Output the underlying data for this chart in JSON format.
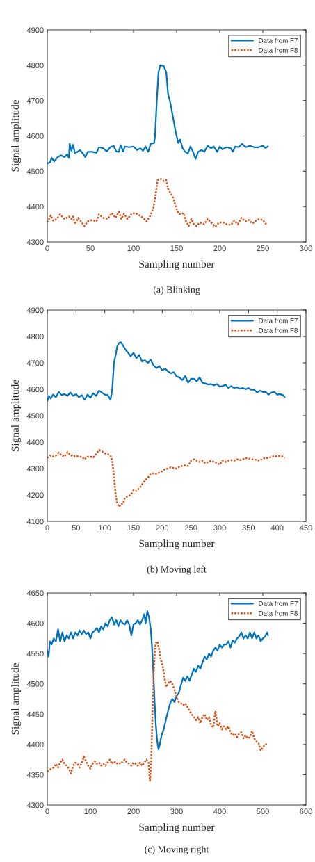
{
  "chart_data": [
    {
      "type": "line",
      "title": "(a) Blinking",
      "xlabel": "Sampling number",
      "ylabel": "Signal amplitude",
      "xlim": [
        0,
        300
      ],
      "xticks": [
        0,
        50,
        100,
        150,
        200,
        250,
        300
      ],
      "ylim": [
        4300,
        4900
      ],
      "yticks": [
        4300,
        4400,
        4500,
        4600,
        4700,
        4800,
        4900
      ],
      "grid": false,
      "legend": "top right",
      "series": [
        {
          "name": "Data from F7",
          "color": "#0072bd",
          "line_style": "solid",
          "x": [
            0,
            3,
            5,
            8,
            12,
            16,
            20,
            23,
            25,
            26,
            28,
            30,
            32,
            35,
            38,
            42,
            44,
            47,
            52,
            57,
            60,
            65,
            69,
            73,
            77,
            80,
            83,
            85,
            88,
            90,
            95,
            100,
            104,
            108,
            111,
            114,
            117,
            120,
            124,
            125,
            127,
            129,
            131,
            135,
            138,
            140,
            143,
            146,
            149,
            152,
            154,
            157,
            160,
            163,
            166,
            169,
            172,
            175,
            179,
            182,
            186,
            190,
            193,
            197,
            200,
            203,
            208,
            213,
            215,
            218,
            222,
            226,
            230,
            235,
            240,
            245,
            250,
            253,
            256
          ],
          "values": [
            4522,
            4525,
            4538,
            4528,
            4540,
            4545,
            4540,
            4548,
            4538,
            4578,
            4558,
            4575,
            4552,
            4555,
            4560,
            4548,
            4540,
            4555,
            4555,
            4552,
            4568,
            4565,
            4556,
            4568,
            4572,
            4556,
            4555,
            4574,
            4556,
            4570,
            4568,
            4570,
            4560,
            4565,
            4558,
            4570,
            4555,
            4578,
            4580,
            4600,
            4700,
            4780,
            4800,
            4798,
            4780,
            4720,
            4690,
            4650,
            4610,
            4580,
            4590,
            4565,
            4555,
            4550,
            4570,
            4555,
            4535,
            4555,
            4560,
            4555,
            4572,
            4565,
            4570,
            4555,
            4570,
            4562,
            4568,
            4565,
            4555,
            4570,
            4568,
            4578,
            4568,
            4572,
            4568,
            4568,
            4572,
            4566,
            4570
          ]
        },
        {
          "name": "Data from F8",
          "color": "#d95319",
          "line_style": "dotted",
          "x": [
            0,
            4,
            7,
            11,
            15,
            20,
            25,
            28,
            30,
            32,
            36,
            40,
            43,
            47,
            52,
            57,
            60,
            65,
            70,
            75,
            79,
            83,
            86,
            89,
            93,
            98,
            102,
            107,
            111,
            115,
            119,
            123,
            126,
            128,
            132,
            135,
            138,
            140,
            143,
            146,
            149,
            152,
            155,
            158,
            161,
            164,
            167,
            170,
            173,
            177,
            182,
            186,
            190,
            195,
            199,
            204,
            208,
            213,
            217,
            221,
            225,
            230,
            234,
            238,
            242,
            246,
            250,
            253,
            256
          ],
          "values": [
            4355,
            4375,
            4360,
            4365,
            4378,
            4365,
            4372,
            4365,
            4372,
            4350,
            4368,
            4355,
            4345,
            4358,
            4362,
            4358,
            4378,
            4368,
            4365,
            4382,
            4368,
            4385,
            4365,
            4380,
            4365,
            4380,
            4382,
            4375,
            4368,
            4358,
            4372,
            4395,
            4440,
            4475,
            4478,
            4472,
            4475,
            4450,
            4438,
            4425,
            4400,
            4380,
            4378,
            4382,
            4358,
            4345,
            4365,
            4350,
            4345,
            4355,
            4350,
            4365,
            4355,
            4343,
            4355,
            4355,
            4350,
            4348,
            4360,
            4350,
            4368,
            4358,
            4362,
            4352,
            4360,
            4365,
            4362,
            4352,
            4350
          ]
        }
      ]
    },
    {
      "type": "line",
      "title": "(b) Moving left",
      "xlabel": "Sampling number",
      "ylabel": "Signal amplitude",
      "xlim": [
        0,
        450
      ],
      "xticks": [
        0,
        50,
        100,
        150,
        200,
        250,
        300,
        350,
        400,
        450
      ],
      "ylim": [
        4100,
        4900
      ],
      "yticks": [
        4100,
        4200,
        4300,
        4400,
        4500,
        4600,
        4700,
        4800,
        4900
      ],
      "grid": false,
      "legend": "top right",
      "series": [
        {
          "name": "Data from F7",
          "color": "#0072bd",
          "line_style": "solid",
          "x": [
            0,
            3,
            6,
            10,
            15,
            20,
            25,
            30,
            35,
            40,
            45,
            50,
            55,
            60,
            65,
            70,
            75,
            80,
            85,
            90,
            95,
            100,
            105,
            110,
            113,
            116,
            119,
            122,
            125,
            128,
            132,
            136,
            140,
            145,
            150,
            155,
            160,
            165,
            170,
            175,
            180,
            185,
            190,
            195,
            200,
            205,
            210,
            215,
            220,
            225,
            230,
            235,
            240,
            245,
            250,
            255,
            260,
            265,
            270,
            275,
            280,
            285,
            290,
            295,
            300,
            305,
            310,
            315,
            320,
            325,
            330,
            335,
            340,
            345,
            350,
            355,
            360,
            365,
            370,
            375,
            380,
            385,
            390,
            395,
            400,
            405,
            410,
            413
          ],
          "values": [
            4555,
            4575,
            4565,
            4580,
            4570,
            4590,
            4578,
            4582,
            4575,
            4588,
            4575,
            4582,
            4570,
            4578,
            4560,
            4580,
            4568,
            4585,
            4575,
            4595,
            4588,
            4580,
            4578,
            4560,
            4600,
            4700,
            4730,
            4765,
            4775,
            4778,
            4765,
            4750,
            4740,
            4725,
            4738,
            4718,
            4730,
            4705,
            4710,
            4700,
            4712,
            4690,
            4680,
            4688,
            4672,
            4678,
            4668,
            4660,
            4665,
            4648,
            4645,
            4635,
            4650,
            4625,
            4640,
            4640,
            4630,
            4645,
            4625,
            4622,
            4618,
            4620,
            4615,
            4620,
            4610,
            4612,
            4618,
            4605,
            4612,
            4605,
            4608,
            4602,
            4605,
            4600,
            4605,
            4598,
            4598,
            4588,
            4595,
            4590,
            4590,
            4580,
            4588,
            4590,
            4580,
            4582,
            4578,
            4570
          ]
        },
        {
          "name": "Data from F8",
          "color": "#d95319",
          "line_style": "dotted",
          "x": [
            0,
            5,
            10,
            15,
            20,
            25,
            30,
            35,
            40,
            45,
            50,
            55,
            60,
            65,
            70,
            75,
            80,
            85,
            90,
            95,
            100,
            105,
            110,
            113,
            116,
            119,
            122,
            125,
            128,
            132,
            135,
            140,
            145,
            150,
            155,
            160,
            165,
            170,
            175,
            180,
            185,
            190,
            195,
            200,
            205,
            210,
            215,
            220,
            225,
            230,
            235,
            240,
            245,
            250,
            255,
            260,
            265,
            270,
            275,
            280,
            285,
            290,
            295,
            300,
            305,
            310,
            315,
            320,
            325,
            330,
            335,
            340,
            345,
            350,
            355,
            360,
            365,
            370,
            375,
            380,
            385,
            390,
            395,
            400,
            405,
            410,
            413
          ],
          "values": [
            4340,
            4350,
            4345,
            4350,
            4360,
            4350,
            4345,
            4362,
            4352,
            4345,
            4348,
            4345,
            4345,
            4335,
            4345,
            4345,
            4342,
            4355,
            4370,
            4365,
            4358,
            4355,
            4350,
            4330,
            4270,
            4200,
            4165,
            4155,
            4165,
            4168,
            4190,
            4195,
            4200,
            4218,
            4215,
            4225,
            4240,
            4255,
            4265,
            4280,
            4282,
            4280,
            4285,
            4290,
            4298,
            4300,
            4305,
            4302,
            4300,
            4308,
            4310,
            4312,
            4310,
            4330,
            4335,
            4330,
            4325,
            4330,
            4320,
            4325,
            4330,
            4325,
            4322,
            4315,
            4330,
            4325,
            4330,
            4332,
            4330,
            4335,
            4332,
            4335,
            4340,
            4338,
            4335,
            4335,
            4332,
            4330,
            4338,
            4340,
            4340,
            4345,
            4348,
            4345,
            4348,
            4345,
            4340
          ]
        }
      ]
    },
    {
      "type": "line",
      "title": "(c) Moving right",
      "xlabel": "Sampling number",
      "ylabel": "Signal amplitude",
      "xlim": [
        0,
        600
      ],
      "xticks": [
        0,
        100,
        200,
        300,
        400,
        500,
        600
      ],
      "ylim": [
        4300,
        4650
      ],
      "yticks": [
        4300,
        4350,
        4400,
        4450,
        4500,
        4550,
        4600,
        4650
      ],
      "grid": false,
      "legend": "top right",
      "series": [
        {
          "name": "Data from F7",
          "color": "#0072bd",
          "line_style": "solid",
          "x": [
            0,
            3,
            6,
            10,
            15,
            20,
            25,
            30,
            35,
            40,
            45,
            50,
            55,
            60,
            65,
            70,
            75,
            80,
            85,
            90,
            95,
            100,
            105,
            110,
            115,
            120,
            125,
            130,
            135,
            140,
            145,
            150,
            155,
            160,
            165,
            170,
            175,
            180,
            185,
            190,
            195,
            200,
            205,
            210,
            215,
            220,
            225,
            228,
            232,
            236,
            240,
            243,
            246,
            249,
            252,
            255,
            258,
            261,
            265,
            270,
            275,
            280,
            285,
            290,
            295,
            300,
            305,
            310,
            315,
            320,
            325,
            330,
            335,
            340,
            345,
            350,
            355,
            360,
            365,
            370,
            375,
            380,
            385,
            390,
            395,
            400,
            405,
            410,
            415,
            420,
            425,
            430,
            435,
            440,
            445,
            450,
            455,
            460,
            465,
            470,
            475,
            480,
            485,
            490,
            495,
            500,
            505,
            510,
            512
          ],
          "values": [
            4555,
            4545,
            4570,
            4565,
            4575,
            4570,
            4590,
            4570,
            4585,
            4570,
            4580,
            4575,
            4585,
            4575,
            4585,
            4580,
            4588,
            4582,
            4588,
            4582,
            4585,
            4575,
            4585,
            4588,
            4592,
            4585,
            4595,
            4590,
            4600,
            4595,
            4605,
            4610,
            4598,
            4605,
            4595,
            4605,
            4600,
            4598,
            4605,
            4598,
            4580,
            4598,
            4600,
            4605,
            4598,
            4605,
            4615,
            4600,
            4620,
            4610,
            4590,
            4560,
            4520,
            4470,
            4430,
            4405,
            4392,
            4400,
            4415,
            4425,
            4440,
            4455,
            4468,
            4475,
            4470,
            4480,
            4485,
            4498,
            4510,
            4505,
            4512,
            4505,
            4515,
            4525,
            4520,
            4530,
            4525,
            4535,
            4545,
            4540,
            4550,
            4545,
            4555,
            4560,
            4555,
            4565,
            4560,
            4565,
            4565,
            4570,
            4560,
            4572,
            4568,
            4575,
            4578,
            4585,
            4575,
            4580,
            4575,
            4585,
            4575,
            4585,
            4575,
            4580,
            4570,
            4575,
            4578,
            4585,
            4580
          ]
        },
        {
          "name": "Data from F8",
          "color": "#d95319",
          "line_style": "dotted",
          "x": [
            0,
            5,
            10,
            15,
            20,
            25,
            30,
            35,
            40,
            45,
            50,
            55,
            60,
            65,
            70,
            75,
            80,
            85,
            90,
            95,
            100,
            105,
            110,
            115,
            120,
            125,
            130,
            135,
            140,
            145,
            150,
            155,
            160,
            165,
            170,
            175,
            180,
            185,
            190,
            195,
            200,
            205,
            210,
            215,
            220,
            225,
            230,
            235,
            238,
            241,
            244,
            247,
            250,
            253,
            256,
            260,
            263,
            266,
            270,
            273,
            276,
            280,
            285,
            290,
            295,
            300,
            305,
            310,
            315,
            320,
            325,
            330,
            335,
            340,
            345,
            350,
            355,
            360,
            365,
            370,
            375,
            380,
            385,
            390,
            395,
            400,
            405,
            410,
            415,
            420,
            425,
            430,
            435,
            440,
            445,
            450,
            455,
            460,
            465,
            470,
            475,
            480,
            485,
            490,
            495,
            500,
            505,
            512
          ],
          "values": [
            4355,
            4358,
            4360,
            4362,
            4368,
            4362,
            4370,
            4375,
            4368,
            4365,
            4360,
            4352,
            4365,
            4370,
            4368,
            4362,
            4370,
            4380,
            4372,
            4365,
            4360,
            4368,
            4372,
            4368,
            4370,
            4365,
            4368,
            4365,
            4370,
            4375,
            4368,
            4372,
            4368,
            4370,
            4368,
            4372,
            4375,
            4370,
            4368,
            4365,
            4370,
            4368,
            4365,
            4370,
            4365,
            4370,
            4375,
            4370,
            4340,
            4370,
            4450,
            4520,
            4560,
            4570,
            4568,
            4555,
            4540,
            4535,
            4520,
            4505,
            4495,
            4500,
            4505,
            4500,
            4490,
            4478,
            4470,
            4468,
            4465,
            4468,
            4462,
            4455,
            4450,
            4445,
            4440,
            4445,
            4435,
            4445,
            4450,
            4440,
            4445,
            4432,
            4428,
            4455,
            4430,
            4435,
            4425,
            4430,
            4425,
            4430,
            4420,
            4415,
            4418,
            4412,
            4418,
            4420,
            4410,
            4415,
            4410,
            4412,
            4422,
            4410,
            4405,
            4402,
            4390,
            4395,
            4400,
            4400
          ]
        }
      ]
    }
  ]
}
